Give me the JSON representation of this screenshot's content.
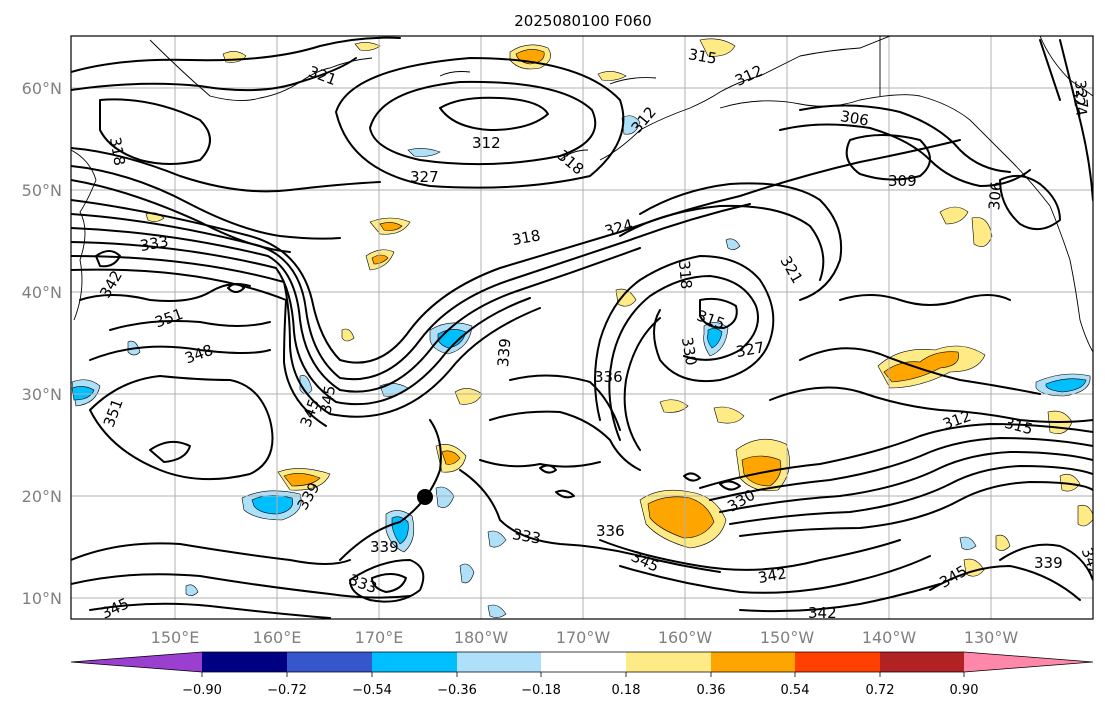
{
  "title": "2025080100 F060",
  "lat_labels": [
    "60°N",
    "50°N",
    "40°N",
    "30°N",
    "20°N",
    "10°N"
  ],
  "lon_labels": [
    "150°E",
    "160°E",
    "170°E",
    "180°W",
    "170°W",
    "160°W",
    "150°W",
    "140°W",
    "130°W"
  ],
  "colorbar": {
    "ticks": [
      "−0.90",
      "−0.72",
      "−0.54",
      "−0.36",
      "−0.18",
      "0.18",
      "0.36",
      "0.54",
      "0.72",
      "0.90"
    ],
    "colors": [
      "#9a3fd0",
      "#000085",
      "#3656cc",
      "#00bfff",
      "#afe0fa",
      "#ffffff",
      "#ffeb85",
      "#ffa500",
      "#ff4000",
      "#b22222",
      "#ff88aa"
    ]
  },
  "contour_labels": [
    {
      "text": "321"
    },
    {
      "text": "318"
    },
    {
      "text": "312"
    },
    {
      "text": "315"
    },
    {
      "text": "312"
    },
    {
      "text": "327"
    },
    {
      "text": "306"
    },
    {
      "text": "324"
    },
    {
      "text": "318"
    },
    {
      "text": "312"
    },
    {
      "text": "327"
    },
    {
      "text": "309"
    },
    {
      "text": "333"
    },
    {
      "text": "342"
    },
    {
      "text": "318"
    },
    {
      "text": "324"
    },
    {
      "text": "318"
    },
    {
      "text": "321"
    },
    {
      "text": "306"
    },
    {
      "text": "351"
    },
    {
      "text": "315"
    },
    {
      "text": "348"
    },
    {
      "text": "330"
    },
    {
      "text": "327"
    },
    {
      "text": "339"
    },
    {
      "text": "336"
    },
    {
      "text": "345"
    },
    {
      "text": "351"
    },
    {
      "text": "345"
    },
    {
      "text": "312"
    },
    {
      "text": "315"
    },
    {
      "text": "339"
    },
    {
      "text": "330"
    },
    {
      "text": "339"
    },
    {
      "text": "333"
    },
    {
      "text": "336"
    },
    {
      "text": "333"
    },
    {
      "text": "345"
    },
    {
      "text": "342"
    },
    {
      "text": "345"
    },
    {
      "text": "339"
    },
    {
      "text": "342"
    },
    {
      "text": "345"
    },
    {
      "text": "342"
    }
  ]
}
